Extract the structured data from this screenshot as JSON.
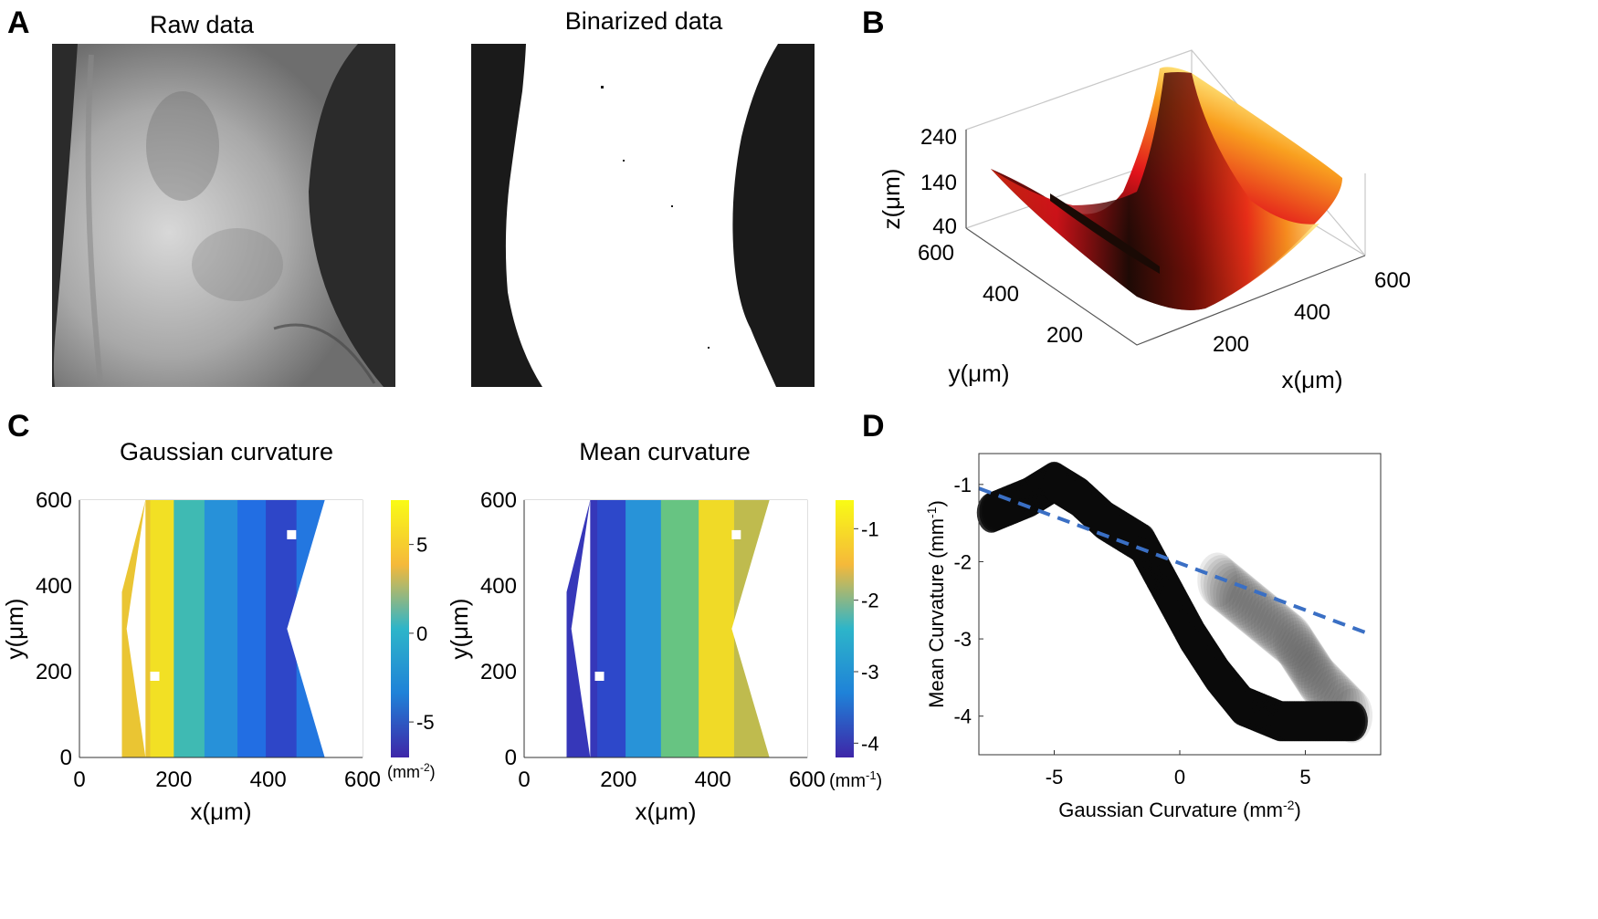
{
  "colors": {
    "parula_low": "#3e26a8",
    "parula_mid": "#2db5c9",
    "parula_high": "#f9fb15",
    "heat_dark": "#1a0a05",
    "heat_red": "#e2131b",
    "heat_yellow": "#fff08a",
    "trend_line": "#3a6fc4",
    "scatter_point": "#0a0a0a"
  },
  "panel_a": {
    "letter": "A",
    "raw_title": "Raw data",
    "binarized_title": "Binarized data"
  },
  "panel_b": {
    "letter": "B",
    "z_label": "z(μm)",
    "y_label": "y(μm)",
    "x_label": "x(μm)",
    "z_ticks": [
      "240",
      "140",
      "40"
    ],
    "y_ticks": [
      "600",
      "400",
      "200"
    ],
    "x_ticks": [
      "200",
      "400",
      "600"
    ]
  },
  "panel_c": {
    "letter": "C",
    "gaussian_title": "Gaussian curvature",
    "mean_title": "Mean curvature",
    "gaussian_unit": "(mm",
    "gaussian_unit_exp": "-2",
    "mean_unit": "(mm",
    "mean_unit_exp": "-1"
  },
  "panel_d": {
    "letter": "D"
  },
  "chart_data": [
    {
      "id": "panel-c-gaussian",
      "type": "heatmap",
      "title": "Gaussian curvature",
      "xlabel": "x(μm)",
      "ylabel": "y(μm)",
      "xlim": [
        0,
        600
      ],
      "ylim": [
        0,
        600
      ],
      "x_ticks": [
        0,
        200,
        400,
        600
      ],
      "y_ticks": [
        0,
        200,
        400,
        600
      ],
      "colorbar": {
        "ticks": [
          5,
          0,
          -5
        ],
        "range": [
          -7,
          7.5
        ],
        "colormap": "parula",
        "unit": "mm-2"
      },
      "bands": [
        {
          "x": 130,
          "value": 5.5
        },
        {
          "x": 170,
          "value": 6.5
        },
        {
          "x": 230,
          "value": 1.5
        },
        {
          "x": 300,
          "value": -1.5
        },
        {
          "x": 370,
          "value": -3.5
        },
        {
          "x": 420,
          "value": -5.5
        },
        {
          "x": 500,
          "value": -3.0
        }
      ]
    },
    {
      "id": "panel-c-mean",
      "type": "heatmap",
      "title": "Mean curvature",
      "xlabel": "x(μm)",
      "ylabel": "y(μm)",
      "xlim": [
        0,
        600
      ],
      "ylim": [
        0,
        600
      ],
      "x_ticks": [
        0,
        200,
        400,
        600
      ],
      "y_ticks": [
        0,
        200,
        400,
        600
      ],
      "colorbar": {
        "ticks": [
          -1,
          -2,
          -3,
          -4
        ],
        "range": [
          -4.2,
          -0.6
        ],
        "colormap": "parula",
        "unit": "mm-1"
      },
      "bands": [
        {
          "x": 130,
          "value": -4.0
        },
        {
          "x": 180,
          "value": -3.8
        },
        {
          "x": 250,
          "value": -2.8
        },
        {
          "x": 330,
          "value": -1.8
        },
        {
          "x": 410,
          "value": -0.9
        },
        {
          "x": 480,
          "value": -1.4
        }
      ]
    },
    {
      "id": "panel-d-scatter",
      "type": "scatter",
      "xlabel": "Gaussian Curvature (mm",
      "xlabel_exp": "-2",
      "ylabel": "Mean Curvature (mm",
      "ylabel_exp": "-1",
      "xlim": [
        -8,
        8
      ],
      "ylim": [
        -4.5,
        -0.6
      ],
      "x_ticks": [
        -5,
        0,
        5
      ],
      "y_ticks": [
        -1,
        -2,
        -3,
        -4
      ],
      "main_band": [
        {
          "x": -7.5,
          "y": -1.2
        },
        {
          "x": -6,
          "y": -1.0
        },
        {
          "x": -5,
          "y": -0.8
        },
        {
          "x": -4,
          "y": -1.0
        },
        {
          "x": -3,
          "y": -1.3
        },
        {
          "x": -1.5,
          "y": -1.6
        },
        {
          "x": -0.5,
          "y": -2.2
        },
        {
          "x": 0.5,
          "y": -2.8
        },
        {
          "x": 1.5,
          "y": -3.3
        },
        {
          "x": 2.5,
          "y": -3.7
        },
        {
          "x": 4,
          "y": -3.9
        },
        {
          "x": 5.5,
          "y": -3.9
        },
        {
          "x": 7,
          "y": -3.9
        }
      ],
      "secondary_band": [
        {
          "x": 1.5,
          "y": -2.0
        },
        {
          "x": 3,
          "y": -2.4
        },
        {
          "x": 4.5,
          "y": -2.8
        },
        {
          "x": 5.5,
          "y": -3.3
        },
        {
          "x": 7,
          "y": -3.8
        }
      ],
      "fit_line": {
        "x": [
          -8,
          7.5
        ],
        "y": [
          -1.05,
          -2.93
        ]
      }
    }
  ]
}
